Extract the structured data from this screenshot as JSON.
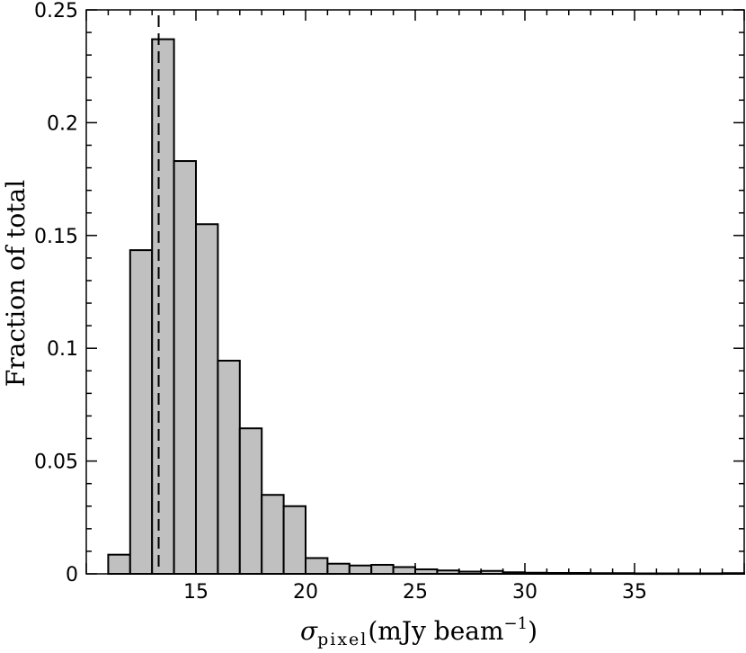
{
  "chart_data": {
    "type": "bar",
    "title": "",
    "xlabel": {
      "symbol": "σ",
      "subscript": "pixel",
      "text": "(mJy beam",
      "exponent": "−1",
      "close": ")"
    },
    "ylabel": "Fraction of total",
    "xlim": [
      10,
      40
    ],
    "ylim": [
      0,
      0.25
    ],
    "bin_width": 1,
    "x_ticks": [
      15,
      20,
      25,
      30,
      35
    ],
    "x_tick_labels": [
      "15",
      "20",
      "25",
      "30",
      "35"
    ],
    "y_ticks": [
      0,
      0.05,
      0.1,
      0.15,
      0.2,
      0.25
    ],
    "y_tick_labels": [
      "0",
      "0.05",
      "0.1",
      "0.15",
      "0.2",
      "0.25"
    ],
    "bin_starts": [
      11,
      12,
      13,
      14,
      15,
      16,
      17,
      18,
      19,
      20,
      21,
      22,
      23,
      24,
      25,
      26,
      27,
      28,
      29,
      30,
      31,
      32,
      33,
      34,
      35,
      36,
      37,
      38,
      39
    ],
    "values": [
      0.0085,
      0.1435,
      0.237,
      0.183,
      0.155,
      0.0945,
      0.0645,
      0.035,
      0.03,
      0.007,
      0.0045,
      0.0037,
      0.004,
      0.003,
      0.002,
      0.0015,
      0.001,
      0.0013,
      0.0007,
      0.0005,
      0.0004,
      0.0004,
      0.0003,
      0.0003,
      0.0002,
      0.0002,
      0.0002,
      0.0002,
      0.0003
    ],
    "reference_line": {
      "x": 13.3,
      "style": "dashed"
    },
    "bar_fill": "#c0c0c0",
    "bar_edge": "#000000",
    "grid": false,
    "legend": "none"
  }
}
